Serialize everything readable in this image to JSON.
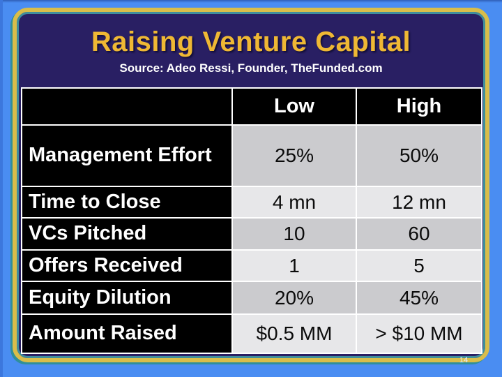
{
  "slide": {
    "title": "Raising Venture Capital",
    "subtitle": "Source: Adeo Ressi, Founder, TheFunded.com",
    "page_number": "14"
  },
  "table": {
    "columns": [
      "",
      "Low",
      "High"
    ],
    "rows": [
      {
        "label": "Management Effort",
        "low": "25%",
        "high": "50%"
      },
      {
        "label": "Time to Close",
        "low": "4 mn",
        "high": "12 mn"
      },
      {
        "label": "VCs Pitched",
        "low": "10",
        "high": "60"
      },
      {
        "label": "Offers Received",
        "low": "1",
        "high": "5"
      },
      {
        "label": "Equity Dilution",
        "low": "20%",
        "high": "45%"
      },
      {
        "label": "Amount Raised",
        "low": "$0.5 MM",
        "high": "> $10 MM"
      }
    ]
  },
  "colors": {
    "background_blue": "#4A8DF2",
    "slide_navy": "#291F63",
    "border_yellow": "#D9BD4A",
    "border_teal": "#2F8F9B",
    "title_gold": "#EFB834",
    "header_bg": "#000000",
    "row_band_dark": "#CBCBCE",
    "row_band_light": "#E7E7E9"
  }
}
